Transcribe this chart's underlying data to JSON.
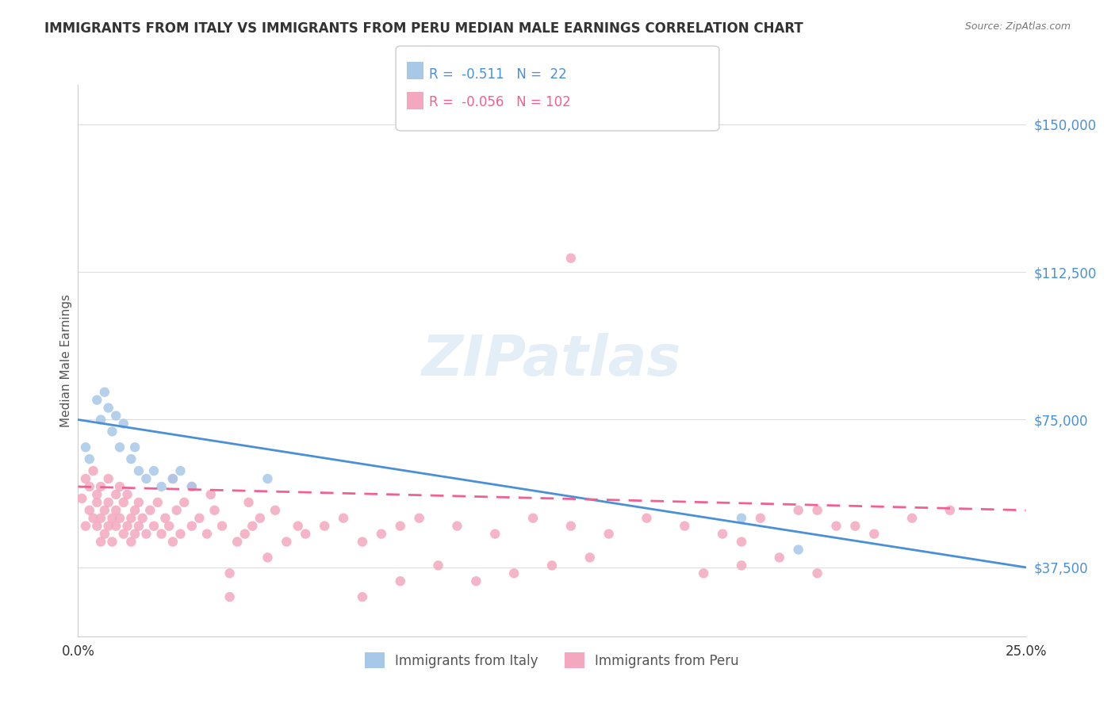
{
  "title": "IMMIGRANTS FROM ITALY VS IMMIGRANTS FROM PERU MEDIAN MALE EARNINGS CORRELATION CHART",
  "source": "Source: ZipAtlas.com",
  "xlabel": "",
  "ylabel": "Median Male Earnings",
  "xlim": [
    0.0,
    0.25
  ],
  "ylim": [
    20000,
    160000
  ],
  "xtick_labels": [
    "0.0%",
    "25.0%"
  ],
  "ytick_labels": [
    "$37,500",
    "$75,000",
    "$112,500",
    "$150,000"
  ],
  "ytick_values": [
    37500,
    75000,
    112500,
    150000
  ],
  "xtick_values": [
    0.0,
    0.25
  ],
  "legend_italy_R": "-0.511",
  "legend_italy_N": "22",
  "legend_peru_R": "-0.056",
  "legend_peru_N": "102",
  "color_italy": "#a8c8e8",
  "color_peru": "#f4a8c0",
  "color_italy_line": "#4a90d9",
  "color_peru_line": "#f06090",
  "watermark": "ZIPatlas",
  "italy_scatter_x": [
    0.002,
    0.003,
    0.005,
    0.006,
    0.007,
    0.008,
    0.009,
    0.01,
    0.011,
    0.012,
    0.014,
    0.015,
    0.016,
    0.018,
    0.02,
    0.022,
    0.025,
    0.027,
    0.03,
    0.05,
    0.175,
    0.19
  ],
  "italy_scatter_y": [
    68000,
    65000,
    80000,
    75000,
    82000,
    78000,
    72000,
    76000,
    68000,
    74000,
    65000,
    68000,
    62000,
    60000,
    62000,
    58000,
    60000,
    62000,
    58000,
    60000,
    50000,
    42000
  ],
  "peru_scatter_x": [
    0.001,
    0.002,
    0.002,
    0.003,
    0.003,
    0.004,
    0.004,
    0.005,
    0.005,
    0.005,
    0.006,
    0.006,
    0.006,
    0.007,
    0.007,
    0.008,
    0.008,
    0.008,
    0.009,
    0.009,
    0.01,
    0.01,
    0.01,
    0.011,
    0.011,
    0.012,
    0.012,
    0.013,
    0.013,
    0.014,
    0.014,
    0.015,
    0.015,
    0.016,
    0.016,
    0.017,
    0.018,
    0.019,
    0.02,
    0.021,
    0.022,
    0.023,
    0.024,
    0.025,
    0.026,
    0.027,
    0.028,
    0.03,
    0.032,
    0.034,
    0.036,
    0.038,
    0.04,
    0.042,
    0.044,
    0.046,
    0.048,
    0.05,
    0.055,
    0.06,
    0.065,
    0.07,
    0.075,
    0.08,
    0.085,
    0.09,
    0.1,
    0.11,
    0.12,
    0.13,
    0.14,
    0.15,
    0.16,
    0.17,
    0.18,
    0.19,
    0.2,
    0.21,
    0.22,
    0.23,
    0.13,
    0.175,
    0.195,
    0.205,
    0.04,
    0.075,
    0.085,
    0.095,
    0.105,
    0.115,
    0.125,
    0.135,
    0.165,
    0.175,
    0.185,
    0.195,
    0.025,
    0.03,
    0.035,
    0.045,
    0.052,
    0.058
  ],
  "peru_scatter_y": [
    55000,
    48000,
    60000,
    52000,
    58000,
    50000,
    62000,
    54000,
    48000,
    56000,
    50000,
    58000,
    44000,
    52000,
    46000,
    54000,
    48000,
    60000,
    50000,
    44000,
    56000,
    48000,
    52000,
    50000,
    58000,
    46000,
    54000,
    48000,
    56000,
    50000,
    44000,
    52000,
    46000,
    54000,
    48000,
    50000,
    46000,
    52000,
    48000,
    54000,
    46000,
    50000,
    48000,
    44000,
    52000,
    46000,
    54000,
    48000,
    50000,
    46000,
    52000,
    48000,
    36000,
    44000,
    46000,
    48000,
    50000,
    40000,
    44000,
    46000,
    48000,
    50000,
    44000,
    46000,
    48000,
    50000,
    48000,
    46000,
    50000,
    48000,
    46000,
    50000,
    48000,
    46000,
    50000,
    52000,
    48000,
    46000,
    50000,
    52000,
    116000,
    44000,
    52000,
    48000,
    30000,
    30000,
    34000,
    38000,
    34000,
    36000,
    38000,
    40000,
    36000,
    38000,
    40000,
    36000,
    60000,
    58000,
    56000,
    54000,
    52000,
    48000
  ]
}
